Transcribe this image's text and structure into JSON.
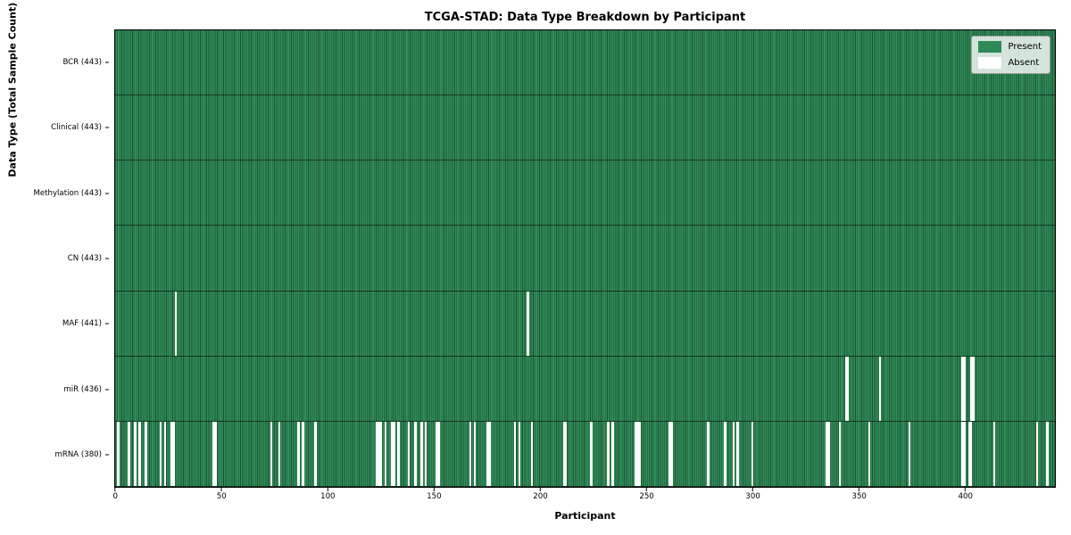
{
  "chart_data": {
    "type": "heatmap",
    "title": "TCGA-STAD: Data Type Breakdown by Participant",
    "xlabel": "Participant",
    "ylabel": "Data Type (Total Sample Count)",
    "n_participants": 443,
    "x_ticks": [
      0,
      50,
      100,
      150,
      200,
      250,
      300,
      350,
      400
    ],
    "grid": false,
    "legend": {
      "position": "upper right",
      "entries": [
        {
          "label": "Present",
          "color": "#2e8b57"
        },
        {
          "label": "Absent",
          "color": "#ffffff"
        }
      ]
    },
    "colors": {
      "present": "#2e8b57",
      "bar_edge": "rgba(0,0,0,0.40)",
      "absent": "#ffffff"
    },
    "rows": [
      {
        "label": "BCR (443)",
        "data_type": "BCR",
        "count": 443,
        "absent": []
      },
      {
        "label": "Clinical (443)",
        "data_type": "Clinical",
        "count": 443,
        "absent": []
      },
      {
        "label": "Methylation (443)",
        "data_type": "Methylation",
        "count": 443,
        "absent": []
      },
      {
        "label": "CN (443)",
        "data_type": "CN",
        "count": 443,
        "absent": []
      },
      {
        "label": "MAF (441)",
        "data_type": "MAF",
        "count": 441,
        "absent": [
          28,
          194
        ]
      },
      {
        "label": "miR (436)",
        "data_type": "miR",
        "count": 436,
        "absent": [
          344,
          345,
          360,
          399,
          400,
          403,
          404
        ]
      },
      {
        "label": "mRNA (380)",
        "data_type": "mRNA",
        "count": 380,
        "absent": [
          1,
          6,
          9,
          11,
          14,
          21,
          23,
          26,
          27,
          46,
          47,
          73,
          77,
          86,
          88,
          94,
          123,
          124,
          125,
          127,
          130,
          131,
          133,
          138,
          141,
          144,
          146,
          151,
          152,
          167,
          169,
          175,
          176,
          188,
          190,
          196,
          211,
          212,
          224,
          232,
          234,
          245,
          246,
          247,
          261,
          262,
          279,
          287,
          291,
          293,
          300,
          335,
          336,
          341,
          355,
          374,
          399,
          400,
          402,
          403,
          414,
          434,
          439
        ]
      }
    ]
  }
}
